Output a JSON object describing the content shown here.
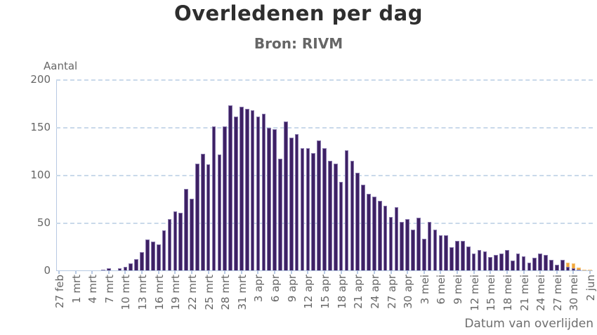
{
  "header": {
    "title": "Overledenen per dag",
    "subtitle": "Bron: RIVM"
  },
  "chart_data": {
    "type": "bar",
    "title": "Overledenen per dag",
    "subtitle": "Bron: RIVM",
    "ylabel": "Aantal",
    "xlabel": "Datum van overlijden",
    "ylim": [
      0,
      200
    ],
    "yticks": [
      0,
      50,
      100,
      150,
      200
    ],
    "grid": "horizontal-dashed",
    "legend": "none",
    "x_tick_interval_days": 3,
    "categories": [
      "27 feb",
      "28 feb",
      "29 feb",
      "1 mrt",
      "2 mrt",
      "3 mrt",
      "4 mrt",
      "5 mrt",
      "6 mrt",
      "7 mrt",
      "8 mrt",
      "9 mrt",
      "10 mrt",
      "11 mrt",
      "12 mrt",
      "13 mrt",
      "14 mrt",
      "15 mrt",
      "16 mrt",
      "17 mrt",
      "18 mrt",
      "19 mrt",
      "20 mrt",
      "21 mrt",
      "22 mrt",
      "23 mrt",
      "24 mrt",
      "25 mrt",
      "26 mrt",
      "27 mrt",
      "28 mrt",
      "29 mrt",
      "30 mrt",
      "31 mrt",
      "1 apr",
      "2 apr",
      "3 apr",
      "4 apr",
      "5 apr",
      "6 apr",
      "7 apr",
      "8 apr",
      "9 apr",
      "10 apr",
      "11 apr",
      "12 apr",
      "13 apr",
      "14 apr",
      "15 apr",
      "16 apr",
      "17 apr",
      "18 apr",
      "19 apr",
      "20 apr",
      "21 apr",
      "22 apr",
      "23 apr",
      "24 apr",
      "25 apr",
      "26 apr",
      "27 apr",
      "28 apr",
      "29 apr",
      "30 apr",
      "1 mei",
      "2 mei",
      "3 mei",
      "4 mei",
      "5 mei",
      "6 mei",
      "7 mei",
      "8 mei",
      "9 mei",
      "10 mei",
      "11 mei",
      "12 mei",
      "13 mei",
      "14 mei",
      "15 mei",
      "16 mei",
      "17 mei",
      "18 mei",
      "19 mei",
      "20 mei",
      "21 mei",
      "22 mei",
      "23 mei",
      "24 mei",
      "25 mei",
      "26 mei",
      "27 mei",
      "28 mei",
      "29 mei",
      "30 mei",
      "31 mei",
      "1 jun",
      "2 jun"
    ],
    "series": [
      {
        "id": "deaths-confirmed-purple",
        "color": "#3e2164",
        "values": [
          0,
          0,
          0,
          0,
          0,
          0,
          0,
          0,
          1,
          2,
          0,
          2,
          4,
          7,
          12,
          19,
          32,
          30,
          27,
          42,
          54,
          62,
          60,
          85,
          75,
          112,
          122,
          111,
          151,
          121,
          151,
          173,
          161,
          171,
          169,
          168,
          161,
          164,
          149,
          148,
          117,
          156,
          139,
          143,
          128,
          128,
          123,
          136,
          128,
          115,
          112,
          93,
          126,
          115,
          102,
          90,
          80,
          77,
          73,
          68,
          56,
          66,
          51,
          54,
          43,
          55,
          33,
          51,
          43,
          37,
          37,
          24,
          31,
          31,
          25,
          18,
          21,
          20,
          14,
          16,
          18,
          21,
          10,
          18,
          15,
          8,
          13,
          18,
          16,
          11,
          6,
          11,
          4,
          2,
          1,
          0,
          0
        ]
      },
      {
        "id": "deaths-recent-orange",
        "color": "#f2a83b",
        "values": [
          0,
          0,
          0,
          0,
          0,
          0,
          0,
          0,
          0,
          0,
          0,
          0,
          0,
          0,
          0,
          0,
          0,
          0,
          0,
          0,
          0,
          0,
          0,
          0,
          0,
          0,
          0,
          0,
          0,
          0,
          0,
          0,
          0,
          0,
          0,
          0,
          0,
          0,
          0,
          0,
          0,
          0,
          0,
          0,
          0,
          0,
          0,
          0,
          0,
          0,
          0,
          0,
          0,
          0,
          0,
          0,
          0,
          0,
          0,
          0,
          0,
          0,
          0,
          0,
          0,
          0,
          0,
          0,
          0,
          0,
          0,
          0,
          0,
          0,
          0,
          0,
          0,
          0,
          0,
          0,
          0,
          0,
          0,
          0,
          0,
          0,
          0,
          0,
          0,
          0,
          0,
          0,
          4,
          5,
          2,
          1,
          1
        ]
      }
    ]
  },
  "colors": {
    "title": "#2e2e2e",
    "subtitle": "#666666",
    "axis_line": "#b7c9e2",
    "gridline": "#c9d9ea",
    "bar_fill": "#3e2164",
    "bar_edge": "#8676ac",
    "orange_fill": "#f2a83b",
    "orange_edge": "#f6c47a",
    "background": "#ffffff"
  }
}
